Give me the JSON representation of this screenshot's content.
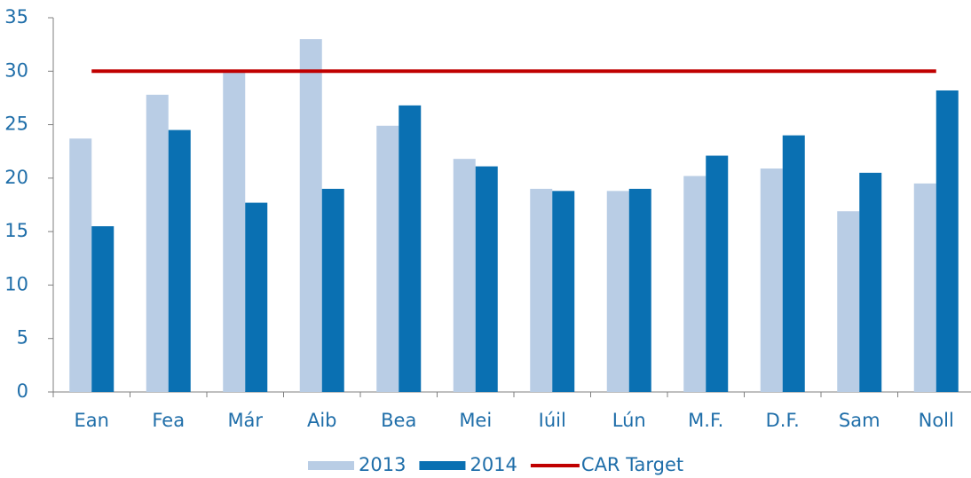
{
  "chart_data": {
    "type": "bar",
    "categories": [
      "Ean",
      "Fea",
      "Már",
      "Aib",
      "Bea",
      "Mei",
      "Iúil",
      "Lún",
      "M.F.",
      "D.F.",
      "Sam",
      "Noll"
    ],
    "series": [
      {
        "name": "2013",
        "color": "#b9cde5",
        "values": [
          23.7,
          27.8,
          30,
          33,
          24.9,
          21.8,
          19,
          18.8,
          20.2,
          20.9,
          16.9,
          19.5
        ]
      },
      {
        "name": "2014",
        "color": "#0a70b2",
        "values": [
          15.5,
          24.5,
          17.7,
          19,
          26.8,
          21.1,
          18.8,
          19,
          22.1,
          24,
          20.5,
          28.2
        ]
      },
      {
        "name": "CAR Target",
        "type": "line",
        "color": "#c00000",
        "values": [
          30,
          30,
          30,
          30,
          30,
          30,
          30,
          30,
          30,
          30,
          30,
          30
        ]
      }
    ],
    "ylim": [
      0,
      35
    ],
    "yticks": [
      0,
      5,
      10,
      15,
      20,
      25,
      30,
      35
    ],
    "grid": false,
    "legend": "bottom"
  }
}
